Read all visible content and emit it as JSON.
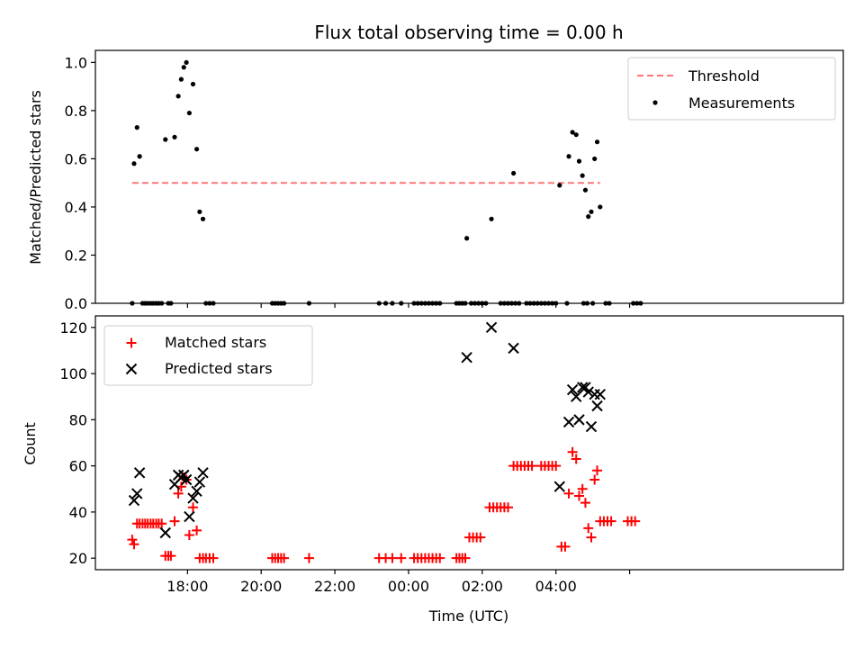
{
  "chart_data": [
    {
      "type": "scatter",
      "title": "Flux total observing time = 0.00 h",
      "xlabel": "",
      "ylabel": "Matched/Predicted stars",
      "xlim": [
        -1.5,
        18.8
      ],
      "ylim": [
        0,
        1.05
      ],
      "x_ticks": [
        1,
        3,
        5,
        7,
        9,
        11,
        13
      ],
      "x_tick_labels": [
        "",
        "",
        "",
        "",
        "",
        "",
        ""
      ],
      "y_ticks": [
        0,
        0.2,
        0.4,
        0.6,
        0.8,
        1.0
      ],
      "y_tick_labels": [
        "0.0",
        "0.2",
        "0.4",
        "0.6",
        "0.8",
        "1.0"
      ],
      "legend_position": "top-right",
      "threshold": {
        "name": "Threshold",
        "value": 0.5,
        "x_range": [
          -0.5,
          12.2
        ],
        "color": "#ff7777",
        "style": "dashed"
      },
      "series": [
        {
          "name": "Measurements",
          "color": "#000000",
          "marker": "dot",
          "points": [
            [
              -0.5,
              0
            ],
            [
              -0.45,
              0.58
            ],
            [
              -0.37,
              0.73
            ],
            [
              -0.3,
              0.61
            ],
            [
              -0.22,
              0
            ],
            [
              -0.15,
              0
            ],
            [
              -0.08,
              0
            ],
            [
              0.0,
              0
            ],
            [
              0.07,
              0
            ],
            [
              0.15,
              0
            ],
            [
              0.22,
              0
            ],
            [
              0.3,
              0
            ],
            [
              0.4,
              0.68
            ],
            [
              0.48,
              0
            ],
            [
              0.55,
              0
            ],
            [
              0.65,
              0.69
            ],
            [
              0.75,
              0.86
            ],
            [
              0.83,
              0.93
            ],
            [
              0.9,
              0.98
            ],
            [
              0.97,
              1.0
            ],
            [
              1.05,
              0.79
            ],
            [
              1.15,
              0.91
            ],
            [
              1.25,
              0.64
            ],
            [
              1.33,
              0.38
            ],
            [
              1.42,
              0.35
            ],
            [
              1.5,
              0
            ],
            [
              1.6,
              0
            ],
            [
              1.7,
              0
            ],
            [
              3.3,
              0
            ],
            [
              3.38,
              0
            ],
            [
              3.46,
              0
            ],
            [
              3.54,
              0
            ],
            [
              3.62,
              0
            ],
            [
              4.3,
              0
            ],
            [
              6.2,
              0
            ],
            [
              6.38,
              0
            ],
            [
              6.56,
              0
            ],
            [
              6.8,
              0
            ],
            [
              7.15,
              0
            ],
            [
              7.25,
              0
            ],
            [
              7.35,
              0
            ],
            [
              7.45,
              0
            ],
            [
              7.55,
              0
            ],
            [
              7.65,
              0
            ],
            [
              7.75,
              0
            ],
            [
              7.85,
              0
            ],
            [
              8.3,
              0
            ],
            [
              8.38,
              0
            ],
            [
              8.46,
              0
            ],
            [
              8.54,
              0
            ],
            [
              8.58,
              0.27
            ],
            [
              8.7,
              0
            ],
            [
              8.8,
              0
            ],
            [
              8.9,
              0
            ],
            [
              9.0,
              0
            ],
            [
              9.1,
              0
            ],
            [
              9.25,
              0.35
            ],
            [
              9.5,
              0
            ],
            [
              9.6,
              0
            ],
            [
              9.7,
              0
            ],
            [
              9.8,
              0
            ],
            [
              9.9,
              0
            ],
            [
              10.0,
              0
            ],
            [
              9.85,
              0.54
            ],
            [
              10.2,
              0
            ],
            [
              10.3,
              0
            ],
            [
              10.4,
              0
            ],
            [
              10.5,
              0
            ],
            [
              10.6,
              0
            ],
            [
              10.7,
              0
            ],
            [
              10.8,
              0
            ],
            [
              10.9,
              0
            ],
            [
              11.0,
              0
            ],
            [
              11.1,
              0.49
            ],
            [
              11.3,
              0
            ],
            [
              11.35,
              0.61
            ],
            [
              11.45,
              0.71
            ],
            [
              11.55,
              0.7
            ],
            [
              11.63,
              0.59
            ],
            [
              11.72,
              0.53
            ],
            [
              11.8,
              0.47
            ],
            [
              11.88,
              0.36
            ],
            [
              11.96,
              0.38
            ],
            [
              12.05,
              0.6
            ],
            [
              12.12,
              0.67
            ],
            [
              12.2,
              0.4
            ],
            [
              11.75,
              0
            ],
            [
              11.85,
              0
            ],
            [
              12.0,
              0
            ],
            [
              12.35,
              0
            ],
            [
              12.45,
              0
            ],
            [
              13.1,
              0
            ],
            [
              13.2,
              0
            ],
            [
              13.3,
              0
            ]
          ]
        }
      ]
    },
    {
      "type": "scatter",
      "title": "",
      "xlabel": "Time (UTC)",
      "ylabel": "Count",
      "xlim": [
        -1.5,
        18.8
      ],
      "ylim": [
        15,
        125
      ],
      "x_ticks": [
        1,
        3,
        5,
        7,
        9,
        11,
        13
      ],
      "x_tick_labels": [
        "18:00",
        "20:00",
        "22:00",
        "00:00",
        "02:00",
        "04:00",
        ""
      ],
      "y_ticks": [
        20,
        40,
        60,
        80,
        100,
        120
      ],
      "y_tick_labels": [
        "20",
        "40",
        "60",
        "80",
        "100",
        "120"
      ],
      "legend_position": "top-left",
      "series": [
        {
          "name": "Matched stars",
          "color": "#ff0000",
          "marker": "plus",
          "points": [
            [
              -0.5,
              28
            ],
            [
              -0.45,
              26
            ],
            [
              -0.37,
              35
            ],
            [
              -0.3,
              35
            ],
            [
              -0.22,
              35
            ],
            [
              -0.15,
              35
            ],
            [
              -0.08,
              35
            ],
            [
              0.0,
              35
            ],
            [
              0.07,
              35
            ],
            [
              0.15,
              35
            ],
            [
              0.22,
              35
            ],
            [
              0.3,
              35
            ],
            [
              0.4,
              21
            ],
            [
              0.48,
              21
            ],
            [
              0.55,
              21
            ],
            [
              0.65,
              36
            ],
            [
              0.75,
              48
            ],
            [
              0.83,
              51
            ],
            [
              0.9,
              55
            ],
            [
              0.97,
              54
            ],
            [
              1.05,
              30
            ],
            [
              1.15,
              42
            ],
            [
              1.25,
              32
            ],
            [
              1.33,
              20
            ],
            [
              1.42,
              20
            ],
            [
              1.5,
              20
            ],
            [
              1.6,
              20
            ],
            [
              1.7,
              20
            ],
            [
              3.3,
              20
            ],
            [
              3.38,
              20
            ],
            [
              3.46,
              20
            ],
            [
              3.54,
              20
            ],
            [
              3.62,
              20
            ],
            [
              4.3,
              20
            ],
            [
              6.2,
              20
            ],
            [
              6.38,
              20
            ],
            [
              6.56,
              20
            ],
            [
              6.8,
              20
            ],
            [
              7.15,
              20
            ],
            [
              7.25,
              20
            ],
            [
              7.35,
              20
            ],
            [
              7.45,
              20
            ],
            [
              7.55,
              20
            ],
            [
              7.65,
              20
            ],
            [
              7.75,
              20
            ],
            [
              7.85,
              20
            ],
            [
              8.3,
              20
            ],
            [
              8.38,
              20
            ],
            [
              8.46,
              20
            ],
            [
              8.54,
              20
            ],
            [
              8.65,
              29
            ],
            [
              8.75,
              29
            ],
            [
              8.85,
              29
            ],
            [
              8.95,
              29
            ],
            [
              9.2,
              42
            ],
            [
              9.3,
              42
            ],
            [
              9.4,
              42
            ],
            [
              9.5,
              42
            ],
            [
              9.6,
              42
            ],
            [
              9.7,
              42
            ],
            [
              9.85,
              60
            ],
            [
              9.95,
              60
            ],
            [
              10.05,
              60
            ],
            [
              10.15,
              60
            ],
            [
              10.25,
              60
            ],
            [
              10.35,
              60
            ],
            [
              10.6,
              60
            ],
            [
              10.7,
              60
            ],
            [
              10.8,
              60
            ],
            [
              10.9,
              60
            ],
            [
              11.0,
              60
            ],
            [
              11.15,
              25
            ],
            [
              11.25,
              25
            ],
            [
              11.35,
              48
            ],
            [
              11.45,
              66
            ],
            [
              11.55,
              63
            ],
            [
              11.63,
              47
            ],
            [
              11.72,
              50
            ],
            [
              11.8,
              44
            ],
            [
              11.88,
              33
            ],
            [
              11.96,
              29
            ],
            [
              12.05,
              54
            ],
            [
              12.12,
              58
            ],
            [
              12.2,
              36
            ],
            [
              12.3,
              36
            ],
            [
              12.4,
              36
            ],
            [
              12.5,
              36
            ],
            [
              12.95,
              36
            ],
            [
              13.05,
              36
            ],
            [
              13.15,
              36
            ]
          ]
        },
        {
          "name": "Predicted stars",
          "color": "#000000",
          "marker": "x",
          "points": [
            [
              -0.45,
              45
            ],
            [
              -0.37,
              48
            ],
            [
              -0.3,
              57
            ],
            [
              0.4,
              31
            ],
            [
              0.65,
              52
            ],
            [
              0.75,
              56
            ],
            [
              0.83,
              55
            ],
            [
              0.9,
              56
            ],
            [
              0.97,
              54
            ],
            [
              1.05,
              38
            ],
            [
              1.15,
              46
            ],
            [
              1.25,
              49
            ],
            [
              1.33,
              53
            ],
            [
              1.42,
              57
            ],
            [
              8.58,
              107
            ],
            [
              9.25,
              120
            ],
            [
              9.85,
              111
            ],
            [
              11.1,
              51
            ],
            [
              11.35,
              79
            ],
            [
              11.45,
              93
            ],
            [
              11.55,
              90
            ],
            [
              11.63,
              80
            ],
            [
              11.72,
              94
            ],
            [
              11.8,
              94
            ],
            [
              11.88,
              92
            ],
            [
              11.96,
              77
            ],
            [
              12.05,
              91
            ],
            [
              12.12,
              86
            ],
            [
              12.2,
              91
            ]
          ]
        }
      ]
    }
  ]
}
